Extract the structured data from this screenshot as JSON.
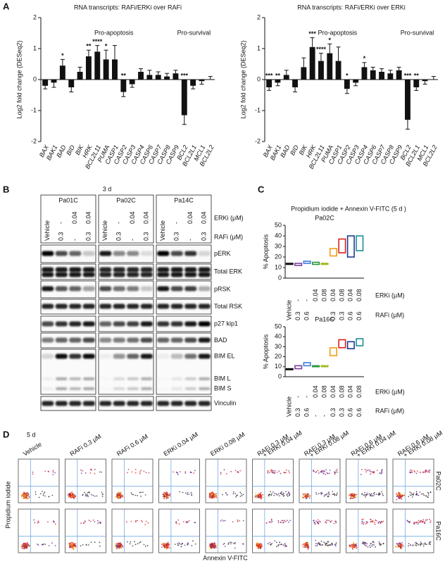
{
  "panel_labels": [
    "A",
    "B",
    "C",
    "D"
  ],
  "chart_data": [
    {
      "type": "bar",
      "title": "RNA transcripts: RAFi/ERKi over RAFi",
      "ylabel": "Log2 fold change (DESeq2)",
      "annotations": [
        {
          "text": "Pro-apoptosis",
          "color": "#1e90e0"
        },
        {
          "text": "Pro-survival",
          "color": "#1a9a1a"
        }
      ],
      "categories": [
        "BAX",
        "BAK1",
        "BAD",
        "BID",
        "BIK",
        "HRK",
        "BCL2L11",
        "PUMA",
        "CASP1",
        "CASP2",
        "CASP3",
        "CASP4",
        "CASP6",
        "CASP7",
        "CASP8",
        "CASP9",
        "BCL2",
        "BCL2L1",
        "MCL1",
        "BCL2L2"
      ],
      "category_colors": [
        "#1e90e0",
        "#1e90e0",
        "#1e90e0",
        "#1e90e0",
        "#1e90e0",
        "#1e90e0",
        "#1e90e0",
        "#1e90e0",
        "#1e90e0",
        "#1e90e0",
        "#1e90e0",
        "#1e90e0",
        "#1e90e0",
        "#1e90e0",
        "#1e90e0",
        "#1e90e0",
        "#1a9a1a",
        "#1a9a1a",
        "#1a9a1a",
        "#1a9a1a"
      ],
      "values": [
        -0.2,
        -0.1,
        0.45,
        -0.25,
        0.25,
        0.75,
        0.9,
        0.65,
        0.65,
        -0.4,
        -0.15,
        0.25,
        0.15,
        0.15,
        0.1,
        0.2,
        -1.15,
        -0.2,
        -0.05,
        0.0
      ],
      "errors": [
        0.1,
        0.15,
        0.2,
        0.15,
        0.15,
        0.2,
        0.2,
        0.3,
        0.45,
        0.15,
        0.1,
        0.1,
        0.15,
        0.1,
        0.1,
        0.1,
        0.3,
        0.1,
        0.1,
        0.1
      ],
      "significance": [
        null,
        null,
        "*",
        null,
        null,
        "**",
        "****",
        "*",
        null,
        "**",
        null,
        null,
        null,
        null,
        null,
        null,
        "***",
        null,
        null,
        null
      ],
      "color": "#111111",
      "ylim": [
        -2,
        2
      ],
      "yticks": [
        -2,
        -1,
        0,
        1,
        2
      ]
    },
    {
      "type": "bar",
      "title": "RNA transcripts: RAFi/ERKi over ERKi",
      "ylabel": "Log2 fold change (DESeq2)",
      "annotations": [
        {
          "text": "Pro-apoptosis",
          "color": "#1e90e0"
        },
        {
          "text": "Pro-survival",
          "color": "#1a9a1a"
        }
      ],
      "categories": [
        "BAX",
        "BAK1",
        "BAD",
        "BID",
        "BIK",
        "HRK",
        "BCL2L11",
        "PUMA",
        "CASP1",
        "CASP2",
        "CASP3",
        "CASP4",
        "CASP6",
        "CASP7",
        "CASP8",
        "CASP9",
        "BCL2",
        "BCL2L1",
        "MCL1",
        "BCL2L2"
      ],
      "category_colors": [
        "#1e90e0",
        "#1e90e0",
        "#1e90e0",
        "#1e90e0",
        "#1e90e0",
        "#1e90e0",
        "#1e90e0",
        "#1e90e0",
        "#1e90e0",
        "#1e90e0",
        "#1e90e0",
        "#1e90e0",
        "#1e90e0",
        "#1e90e0",
        "#1e90e0",
        "#1e90e0",
        "#1a9a1a",
        "#1a9a1a",
        "#1a9a1a",
        "#1a9a1a"
      ],
      "values": [
        -0.25,
        -0.1,
        0.15,
        -0.25,
        0.4,
        1.05,
        0.6,
        0.85,
        0.6,
        -0.3,
        -0.1,
        0.4,
        0.3,
        0.25,
        0.2,
        0.3,
        -1.3,
        -0.25,
        -0.05,
        0.0
      ],
      "errors": [
        0.1,
        0.1,
        0.15,
        0.15,
        0.3,
        0.3,
        0.25,
        0.3,
        0.45,
        0.15,
        0.1,
        0.15,
        0.1,
        0.1,
        0.1,
        0.1,
        0.3,
        0.1,
        0.1,
        0.1
      ],
      "significance": [
        "***",
        "**",
        null,
        null,
        null,
        "***",
        "****",
        "*",
        null,
        "*",
        null,
        "*",
        null,
        null,
        null,
        null,
        "***",
        "**",
        null,
        null
      ],
      "color": "#111111",
      "ylim": [
        -2,
        2
      ],
      "yticks": [
        -2,
        -1,
        0,
        1,
        2
      ]
    },
    {
      "type": "floating_bar",
      "suptitle": "Propidium iodide + Annexin V-FITC (5 d )",
      "title": "Pa02C",
      "ylabel": "% Apoptosis",
      "categories": [
        "Vehicle",
        null,
        null,
        null,
        null,
        null,
        null,
        null,
        null
      ],
      "row_labels": [
        "ERKi (µM)",
        "RAFi (µM)"
      ],
      "erki": [
        null,
        "-",
        "-",
        "0.04",
        "0.08",
        "0.04",
        "0.08",
        "0.04",
        "0.08"
      ],
      "rafi": [
        null,
        "0.3",
        "0.6",
        "-",
        "-",
        "0.3",
        "0.3",
        "0.6",
        "0.6"
      ],
      "low": [
        13,
        12,
        14,
        13,
        13,
        21,
        24,
        20,
        26
      ],
      "high": [
        14,
        14,
        16,
        15,
        14,
        28,
        37,
        40,
        40
      ],
      "colors": [
        "#111111",
        "#7b3fa0",
        "#3d7bd8",
        "#2a9a3a",
        "#a4b820",
        "#f39c12",
        "#e02020",
        "#1f3a93",
        "#1a8f9a"
      ],
      "ylim": [
        0,
        50
      ],
      "yticks": [
        0,
        10,
        20,
        30,
        40,
        50
      ]
    },
    {
      "type": "floating_bar",
      "title": "Pa16C",
      "ylabel": "% Apoptosis",
      "categories": [
        "Vehicle",
        null,
        null,
        null,
        null,
        null,
        null,
        null,
        null
      ],
      "row_labels": [
        "ERKi (µM)",
        "RAFi (µM)"
      ],
      "erki": [
        null,
        "-",
        "-",
        "0.04",
        "0.08",
        "0.04",
        "0.08",
        "0.04",
        "0.08"
      ],
      "rafi": [
        null,
        "0.3",
        "0.6",
        "-",
        "-",
        "0.3",
        "0.3",
        "0.6",
        "0.6"
      ],
      "low": [
        7,
        8,
        11,
        10,
        10,
        21,
        29,
        28,
        31
      ],
      "high": [
        8,
        11,
        14,
        11,
        11,
        29,
        37,
        35,
        38
      ],
      "colors": [
        "#111111",
        "#7b3fa0",
        "#3d7bd8",
        "#2a9a3a",
        "#a4b820",
        "#f39c12",
        "#e02020",
        "#1f3a93",
        "#1a8f9a"
      ],
      "ylim": [
        0,
        50
      ],
      "yticks": [
        0,
        10,
        20,
        30,
        40,
        50
      ]
    }
  ],
  "blot": {
    "time": "3 d",
    "cell_lines": [
      "Pa01C",
      "Pa02C",
      "Pa14C"
    ],
    "vehicle": "Vehicle",
    "erki": [
      null,
      "-",
      "0.04",
      "0.04"
    ],
    "rafi": [
      null,
      "0.3",
      "-",
      "0.3"
    ],
    "row_labels": [
      "ERKi (μM)",
      "RAFi (μM)"
    ],
    "bands": [
      "pERK",
      "Total ERK",
      "pRSK",
      "Total RSK",
      "p27 kip1",
      "BAD",
      "BIM EL",
      "BIM L",
      "BIM S",
      "Vinculin"
    ]
  },
  "flow": {
    "time": "5 d",
    "conditions": [
      [
        "Vehicle"
      ],
      [
        "RAFi 0.3 μM"
      ],
      [
        "RAFi 0.6 μM"
      ],
      [
        "ERKi 0.04 μM"
      ],
      [
        "ERKi 0.08 μM"
      ],
      [
        "RAFi 0.3 μM",
        "+ ERKi 0.04 μM"
      ],
      [
        "RAFi 0.3 μM",
        "+ ERKi 0.08 μM"
      ],
      [
        "RAFi 0.6 μM",
        "+ ERKi 0.04 μM"
      ],
      [
        "RAFi 0.6 μM",
        "+ ERKi 0.08 μM"
      ]
    ],
    "cell_lines": [
      "Pa02C",
      "Pa16C"
    ],
    "ylabel": "Propidium iodide",
    "xlabel": "Annexin V-FITC"
  }
}
